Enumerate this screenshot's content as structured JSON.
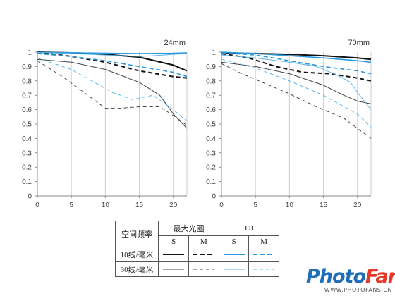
{
  "chart_data": [
    {
      "type": "line",
      "title": "24mm",
      "xlim": [
        0,
        22
      ],
      "ylim": [
        0,
        1
      ],
      "xticks": [
        "0",
        "5",
        "10",
        "15",
        "20"
      ],
      "yticks": [
        "0",
        "0.1",
        "0.2",
        "0.3",
        "0.4",
        "0.5",
        "0.6",
        "0.7",
        "0.8",
        "0.9",
        "1"
      ],
      "grid": "vertical",
      "series": [
        {
          "style": "max-10-S",
          "x": [
            0,
            5,
            10,
            15,
            20,
            22
          ],
          "y": [
            1.0,
            0.995,
            0.985,
            0.965,
            0.91,
            0.87
          ]
        },
        {
          "style": "max-10-M",
          "x": [
            0,
            5,
            10,
            15,
            20,
            22
          ],
          "y": [
            1.0,
            0.97,
            0.93,
            0.87,
            0.83,
            0.82
          ]
        },
        {
          "style": "max-30-S",
          "x": [
            0,
            5,
            10,
            15,
            18,
            20,
            22
          ],
          "y": [
            0.95,
            0.93,
            0.88,
            0.79,
            0.7,
            0.57,
            0.47
          ]
        },
        {
          "style": "max-30-M",
          "x": [
            0,
            4,
            8,
            10,
            12,
            15,
            18,
            20,
            22
          ],
          "y": [
            0.94,
            0.82,
            0.68,
            0.61,
            0.61,
            0.62,
            0.62,
            0.56,
            0.49
          ]
        },
        {
          "style": "f8-10-S",
          "x": [
            0,
            5,
            10,
            15,
            20,
            22
          ],
          "y": [
            0.998,
            0.996,
            0.992,
            0.99,
            0.992,
            0.995
          ]
        },
        {
          "style": "f8-10-M",
          "x": [
            0,
            5,
            10,
            15,
            20,
            22
          ],
          "y": [
            0.99,
            0.97,
            0.94,
            0.9,
            0.86,
            0.83
          ]
        },
        {
          "style": "f8-30-S",
          "x": [
            0,
            5,
            10,
            15,
            17,
            20,
            22
          ],
          "y": [
            0.998,
            0.99,
            0.98,
            0.97,
            0.975,
            0.985,
            0.99
          ]
        },
        {
          "style": "f8-30-M",
          "x": [
            0,
            5,
            8,
            11,
            14,
            17,
            20,
            22
          ],
          "y": [
            0.96,
            0.88,
            0.8,
            0.72,
            0.67,
            0.7,
            0.6,
            0.52
          ]
        }
      ]
    },
    {
      "type": "line",
      "title": "70mm",
      "xlim": [
        0,
        22
      ],
      "ylim": [
        0,
        1
      ],
      "xticks": [
        "0",
        "5",
        "10",
        "15",
        "20"
      ],
      "yticks": [
        "0",
        "0.1",
        "0.2",
        "0.3",
        "0.4",
        "0.5",
        "0.6",
        "0.7",
        "0.8",
        "0.9",
        "1"
      ],
      "grid": "vertical",
      "series": [
        {
          "style": "max-10-S",
          "x": [
            0,
            5,
            10,
            15,
            20,
            22
          ],
          "y": [
            0.995,
            0.99,
            0.985,
            0.975,
            0.96,
            0.95
          ]
        },
        {
          "style": "max-10-M",
          "x": [
            0,
            4,
            8,
            12,
            16,
            20,
            22
          ],
          "y": [
            0.99,
            0.96,
            0.9,
            0.86,
            0.85,
            0.82,
            0.8
          ]
        },
        {
          "style": "max-30-S",
          "x": [
            0,
            5,
            10,
            15,
            18,
            20,
            22
          ],
          "y": [
            0.93,
            0.9,
            0.85,
            0.77,
            0.7,
            0.66,
            0.64
          ]
        },
        {
          "style": "max-30-M",
          "x": [
            0,
            3,
            6,
            10,
            14,
            18,
            20,
            22
          ],
          "y": [
            0.92,
            0.85,
            0.79,
            0.71,
            0.62,
            0.54,
            0.47,
            0.4
          ]
        },
        {
          "style": "f8-10-S",
          "x": [
            0,
            5,
            10,
            15,
            20,
            22
          ],
          "y": [
            1.0,
            0.99,
            0.975,
            0.96,
            0.94,
            0.93
          ]
        },
        {
          "style": "f8-10-M",
          "x": [
            0,
            5,
            10,
            15,
            20,
            22
          ],
          "y": [
            0.995,
            0.98,
            0.94,
            0.9,
            0.87,
            0.85
          ]
        },
        {
          "style": "f8-30-S",
          "x": [
            0,
            5,
            10,
            14,
            17,
            19,
            20,
            22
          ],
          "y": [
            0.98,
            0.96,
            0.93,
            0.9,
            0.84,
            0.79,
            0.72,
            0.6
          ]
        },
        {
          "style": "f8-30-M",
          "x": [
            0,
            5,
            10,
            15,
            20,
            22
          ],
          "y": [
            0.95,
            0.89,
            0.8,
            0.7,
            0.57,
            0.48
          ]
        }
      ]
    }
  ],
  "legend": {
    "header_col": "空间频率",
    "group_max": "最大光圈",
    "group_f8": "F8",
    "col_s": "S",
    "col_m": "M",
    "row_10": "10线/毫米",
    "row_30": "30线/毫米"
  },
  "colors": {
    "black_line": "#111111",
    "gray_line": "#444444",
    "blue_line": "#2a9be0",
    "blue_light": "#5ab4ea",
    "axis": "#888888"
  },
  "logo": {
    "photo": "Photo",
    "fans": "Fans",
    "url": "WWW.PHOTOFANS.CN",
    "photo_color": "#1f6fb8",
    "fans_color": "#e6392b"
  }
}
